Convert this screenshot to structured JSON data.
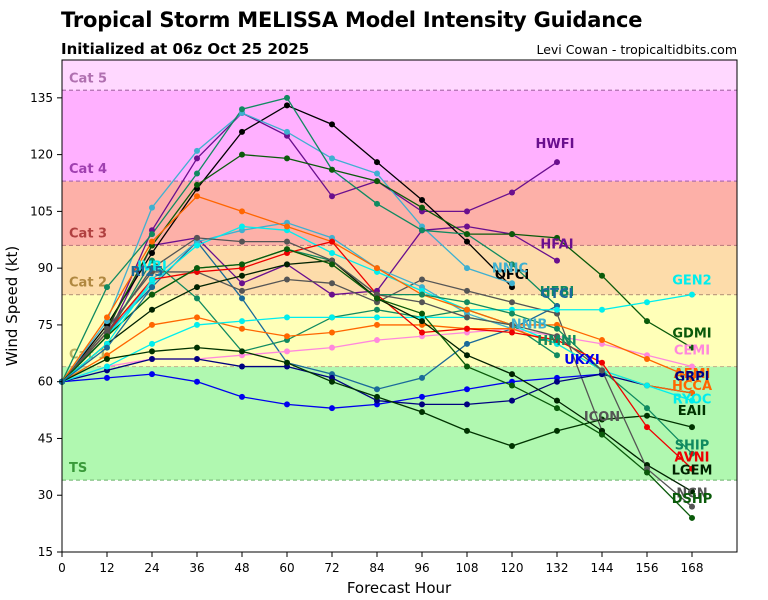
{
  "header": {
    "title": "Tropical Storm MELISSA Model Intensity Guidance",
    "subtitle": "Initialized at 06z Oct 25 2025",
    "credit": "Levi Cowan - tropicaltidbits.com"
  },
  "chart_data": {
    "type": "line",
    "title": "Tropical Storm MELISSA Model Intensity Guidance",
    "subtitle": "Initialized at 06z Oct 25 2025",
    "xlabel": "Forecast Hour",
    "ylabel": "Wind Speed (kt)",
    "xlim": [
      0,
      180
    ],
    "ylim": [
      15,
      145
    ],
    "xticks": [
      0,
      12,
      24,
      36,
      48,
      60,
      72,
      84,
      96,
      108,
      120,
      132,
      144,
      156,
      168
    ],
    "yticks": [
      15,
      30,
      45,
      60,
      75,
      90,
      105,
      120,
      135
    ],
    "grid": false,
    "legend": "labels at series ends",
    "categories_bands": [
      {
        "label": "TS",
        "min": 34,
        "max": 64,
        "color": "#b0f8b0",
        "label_color": "#3a9a3a",
        "line_color": "#7fbf7f"
      },
      {
        "label": "Cat 1",
        "min": 64,
        "max": 83,
        "color": "#ffffb8",
        "label_color": "#b8b060",
        "line_color": "#c8b890"
      },
      {
        "label": "Cat 2",
        "min": 83,
        "max": 96,
        "color": "#fddcaa",
        "label_color": "#b08840",
        "line_color": "#c0a080"
      },
      {
        "label": "Cat 3",
        "min": 96,
        "max": 113,
        "color": "#fdb0a8",
        "label_color": "#b04040",
        "line_color": "#c08080"
      },
      {
        "label": "Cat 4",
        "min": 113,
        "max": 137,
        "color": "#ffb0ff",
        "label_color": "#a040b0",
        "line_color": "#b070b0"
      },
      {
        "label": "Cat 5",
        "min": 137,
        "max": 145,
        "color": "#ffd8ff",
        "label_color": "#b070b0",
        "line_color": "#b070b0"
      }
    ],
    "x": [
      0,
      12,
      24,
      36,
      48,
      60,
      72,
      84,
      96,
      108,
      120,
      132,
      144,
      156,
      168
    ],
    "series": [
      {
        "name": "HWFI",
        "color": "#6a0f8e",
        "values": [
          60,
          73,
          100,
          119,
          131,
          125,
          109,
          113,
          105,
          105,
          110,
          118
        ]
      },
      {
        "name": "HFAI",
        "color": "#6a0f8e",
        "values": [
          60,
          72,
          96,
          98,
          86,
          91,
          83,
          84,
          100,
          101,
          99,
          92
        ]
      },
      {
        "name": "OFCI",
        "color": "#000000",
        "values": [
          60,
          75,
          94,
          111,
          126,
          133,
          128,
          118,
          108,
          97,
          85
        ]
      },
      {
        "name": "NNIC",
        "color": "#3fb0d0",
        "values": [
          60,
          76,
          106,
          121,
          131,
          126,
          119,
          115,
          101,
          90,
          86
        ]
      },
      {
        "name": "HFBI",
        "color": "#108a60",
        "values": [
          60,
          85,
          99,
          115,
          132,
          135,
          116,
          107,
          100,
          99,
          91,
          80
        ]
      },
      {
        "name": "GDMI",
        "color": "#0a5a0a",
        "values": [
          60,
          74,
          96,
          112,
          120,
          119,
          116,
          113,
          106,
          99,
          99,
          98,
          88,
          76,
          69
        ]
      },
      {
        "name": "CTCI",
        "color": "#1a6a9a",
        "values": [
          60,
          73,
          85,
          97,
          82,
          65,
          62,
          58,
          61,
          70,
          74,
          80
        ]
      },
      {
        "name": "ICON",
        "color": "#555555",
        "values": [
          60,
          74,
          89,
          89,
          84,
          87,
          86,
          81,
          87,
          84,
          81,
          78,
          47
        ]
      },
      {
        "name": "NNIB",
        "color": "#3fb0d0",
        "values": [
          60,
          72,
          87,
          97,
          100,
          102,
          98,
          90,
          85,
          78,
          74,
          72
        ]
      },
      {
        "name": "GEN2",
        "color": "#00eeee",
        "values": [
          60,
          72,
          86,
          96,
          101,
          100,
          94,
          89,
          84,
          79,
          79,
          79,
          79,
          81,
          83
        ]
      },
      {
        "name": "HMNI",
        "color": "#108a60",
        "values": [
          60,
          72,
          92,
          82,
          68,
          71,
          77,
          79,
          77,
          79,
          75,
          67
        ]
      },
      {
        "name": "UKXI",
        "color": "#0000ee",
        "values": [
          60,
          61,
          62,
          60,
          56,
          54,
          53,
          54,
          56,
          58,
          60,
          61,
          62
        ]
      },
      {
        "name": "CEMI",
        "color": "#ff88dd",
        "values": [
          60,
          64,
          66,
          66,
          67,
          68,
          69,
          71,
          72,
          73,
          74,
          72,
          70,
          67,
          64
        ]
      },
      {
        "name": "AEMI",
        "color": "#ff6600",
        "values": [
          60,
          77,
          97,
          109,
          105,
          101,
          97,
          90,
          83,
          79,
          75,
          75,
          71,
          66,
          61
        ]
      },
      {
        "name": "GRPI",
        "color": "#000080",
        "values": [
          60,
          63,
          66,
          66,
          64,
          64,
          61,
          55,
          54,
          54,
          55,
          60,
          62,
          59,
          57
        ]
      },
      {
        "name": "HCCA",
        "color": "#ff6600",
        "values": [
          60,
          67,
          75,
          77,
          74,
          72,
          73,
          75,
          75,
          74,
          74,
          70,
          63,
          59,
          57
        ]
      },
      {
        "name": "RYOC",
        "color": "#00eeee",
        "values": [
          60,
          64,
          70,
          75,
          76,
          77,
          77,
          77,
          77,
          77,
          75,
          70,
          63,
          59,
          55
        ]
      },
      {
        "name": "EAII",
        "color": "#003300",
        "values": [
          60,
          66,
          68,
          69,
          68,
          65,
          60,
          56,
          52,
          47,
          43,
          47,
          50,
          51,
          48
        ]
      },
      {
        "name": "SHIP",
        "color": "#108a60",
        "values": [
          60,
          72,
          83,
          90,
          91,
          95,
          92,
          83,
          83,
          81,
          78,
          74,
          63,
          53,
          41
        ]
      },
      {
        "name": "AVNI",
        "color": "#ee0000",
        "values": [
          60,
          73,
          87,
          89,
          90,
          94,
          97,
          83,
          73,
          74,
          73,
          71,
          65,
          48,
          37
        ]
      },
      {
        "name": "LGEM",
        "color": "#002200",
        "values": [
          60,
          70,
          79,
          85,
          88,
          91,
          92,
          82,
          76,
          67,
          62,
          55,
          47,
          38,
          31
        ]
      },
      {
        "name": "NCN",
        "color": "#555555",
        "values": [
          60,
          73,
          90,
          98,
          97,
          97,
          92,
          83,
          81,
          77,
          75,
          72,
          63,
          37,
          27
        ]
      },
      {
        "name": "DSHP",
        "color": "#0a5a0a",
        "values": [
          60,
          72,
          83,
          90,
          91,
          95,
          91,
          82,
          78,
          64,
          59,
          53,
          46,
          36,
          24
        ]
      },
      {
        "name": "IVRI",
        "color": "#00eeee",
        "values": [
          60,
          70,
          87
        ]
      },
      {
        "name": "RI25",
        "color": "#1a6a9a",
        "values": [
          60,
          69,
          85
        ]
      }
    ]
  }
}
